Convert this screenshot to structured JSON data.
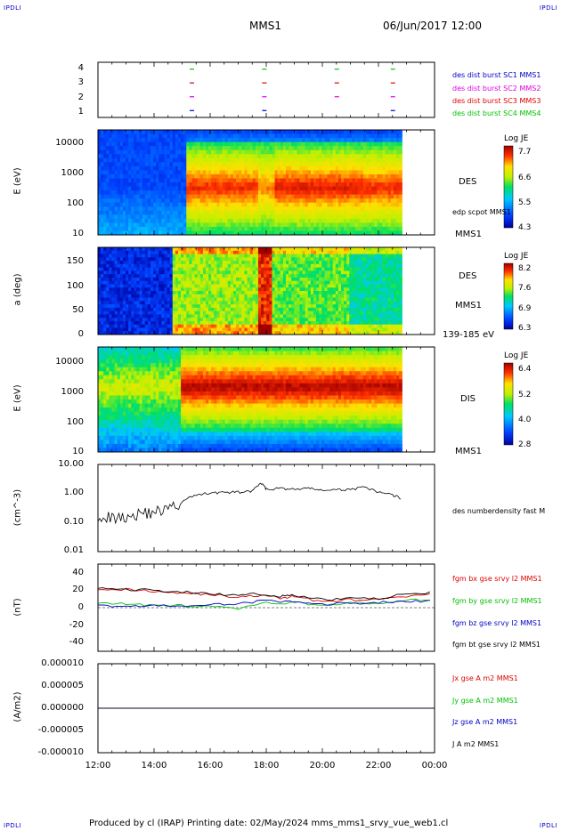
{
  "corners": {
    "tl": "IPDLI",
    "tr": "IPDLI",
    "bl": "IPDLI",
    "br": "IPDLI"
  },
  "header": {
    "title": "MMS1",
    "date": "06/Jun/2017 12:00"
  },
  "footer": {
    "text": "Produced by cl (IRAP)   Printing date: 02/May/2024   mms_mms1_srvy_vue_web1.cl"
  },
  "colors": {
    "blue": "#0000c8",
    "magenta": "#e000e0",
    "red": "#e00000",
    "green": "#00c000",
    "black": "#000000"
  },
  "panels": {
    "sc": {
      "yticks": [
        "4",
        "3",
        "2",
        "1"
      ],
      "legend": [
        "des dist burst SC1 MMS1",
        "des dist burst SC2 MMS2",
        "des dist burst SC3 MMS3",
        "des dist burst SC4 MMS4"
      ]
    },
    "des_e": {
      "ylabel": "E (eV)",
      "yticks": [
        "10000",
        "1000",
        "100",
        "10"
      ],
      "side_label": "DES",
      "side_small": "edp scpot MMS1",
      "bottom_right": "MMS1",
      "cb_title": "Log JE",
      "cb_ticks": [
        "7.7",
        "6.6",
        "5.5",
        "4.3"
      ]
    },
    "des_pa": {
      "ylabel": "a (deg)",
      "yticks": [
        "150",
        "100",
        "50",
        "0"
      ],
      "side_label": "DES",
      "side_label2": "MMS1",
      "bottom_right": "139-185 eV",
      "cb_title": "Log JE",
      "cb_ticks": [
        "8.2",
        "7.6",
        "6.9",
        "6.3"
      ]
    },
    "dis_e": {
      "ylabel": "E (eV)",
      "yticks": [
        "10000",
        "1000",
        "100",
        "10"
      ],
      "side_label": "DIS",
      "bottom_right": "MMS1",
      "cb_title": "Log JE",
      "cb_ticks": [
        "6.4",
        "5.2",
        "4.0",
        "2.8"
      ]
    },
    "density": {
      "ylabel": "(cm^-3)",
      "yticks": [
        "10.00",
        "1.00",
        "0.10",
        "0.01"
      ],
      "legend": "des numberdensity fast M"
    },
    "bfield": {
      "ylabel": "(nT)",
      "yticks": [
        "40",
        "20",
        "0",
        "-20",
        "-40"
      ],
      "legend": [
        "fgm bx gse srvy l2 MMS1",
        "fgm by gse srvy l2 MMS1",
        "fgm bz gse srvy l2 MMS1",
        "fgm bt gse srvy l2 MMS1"
      ]
    },
    "current": {
      "ylabel": "(A/m2)",
      "yticks": [
        "0.000010",
        "0.000005",
        "0.000000",
        "-0.000005",
        "-0.000010"
      ],
      "legend": [
        "Jx gse A m2 MMS1",
        "Jy gse A m2 MMS1",
        "Jz gse A m2 MMS1",
        "J A m2 MMS1"
      ]
    }
  },
  "xaxis": {
    "ticks": [
      "12:00",
      "14:00",
      "16:00",
      "18:00",
      "20:00",
      "22:00",
      "00:00"
    ]
  },
  "chart_data": [
    {
      "type": "scatter",
      "title": "",
      "xlabel": "",
      "ylabel": "",
      "ylim": [
        0.5,
        4.5
      ],
      "x_time_range": [
        "12:00",
        "00:00"
      ],
      "series": [
        {
          "name": "des dist burst SC1 MMS1",
          "y": 1,
          "x": [
            "15:20",
            "17:55",
            "22:30"
          ]
        },
        {
          "name": "des dist burst SC2 MMS2",
          "y": 2,
          "x": [
            "15:20",
            "17:55",
            "20:30",
            "22:30"
          ]
        },
        {
          "name": "des dist burst SC3 MMS3",
          "y": 3,
          "x": [
            "15:20",
            "17:55",
            "20:30",
            "22:30"
          ]
        },
        {
          "name": "des dist burst SC4 MMS4",
          "y": 4,
          "x": [
            "15:20",
            "17:55",
            "20:30",
            "22:30"
          ]
        }
      ]
    },
    {
      "type": "heatmap",
      "ylabel": "E (eV)",
      "yscale": "log",
      "ylim": [
        10,
        30000
      ],
      "x_time_range": [
        "12:00",
        "22:50"
      ],
      "colorbar": {
        "title": "Log JE",
        "range": [
          4.3,
          7.7
        ]
      },
      "regions": [
        {
          "x": [
            "12:00",
            "15:10"
          ],
          "level": 0.2
        },
        {
          "x": [
            "15:10",
            "17:40"
          ],
          "level": 0.85
        },
        {
          "x": [
            "17:40",
            "18:20"
          ],
          "level": 0.7
        },
        {
          "x": [
            "18:20",
            "21:30"
          ],
          "level": 0.9
        },
        {
          "x": [
            "21:30",
            "22:50"
          ],
          "level": 0.85
        }
      ]
    },
    {
      "type": "heatmap",
      "ylabel": "a (deg)",
      "ylim": [
        0,
        180
      ],
      "x_time_range": [
        "12:00",
        "22:50"
      ],
      "colorbar": {
        "title": "Log JE",
        "range": [
          6.3,
          8.2
        ]
      },
      "regions": [
        {
          "x": [
            "12:00",
            "14:40"
          ],
          "level": 0.1
        },
        {
          "x": [
            "14:40",
            "17:40"
          ],
          "level": 0.6
        },
        {
          "x": [
            "17:40",
            "18:10"
          ],
          "level": 0.9
        },
        {
          "x": [
            "18:10",
            "21:00"
          ],
          "level": 0.55
        },
        {
          "x": [
            "21:00",
            "22:50"
          ],
          "level": 0.45
        }
      ]
    },
    {
      "type": "heatmap",
      "ylabel": "E (eV)",
      "yscale": "log",
      "ylim": [
        10,
        30000
      ],
      "x_time_range": [
        "12:00",
        "22:50"
      ],
      "colorbar": {
        "title": "Log JE",
        "range": [
          2.8,
          6.4
        ]
      },
      "regions": [
        {
          "x": [
            "12:00",
            "15:00"
          ],
          "level": 0.5
        },
        {
          "x": [
            "15:00",
            "22:50"
          ],
          "level": 0.88
        }
      ]
    },
    {
      "type": "line",
      "ylabel": "(cm^-3)",
      "yscale": "log",
      "ylim": [
        0.01,
        10
      ],
      "series": [
        {
          "name": "des numberdensity fast M",
          "x": [
            "12:00",
            "12:30",
            "13:00",
            "13:30",
            "14:00",
            "14:30",
            "15:00",
            "15:30",
            "16:00",
            "16:30",
            "17:00",
            "17:30",
            "17:50",
            "18:00",
            "18:30",
            "19:00",
            "19:30",
            "20:00",
            "20:30",
            "21:00",
            "21:30",
            "22:00",
            "22:30",
            "22:50"
          ],
          "values": [
            0.2,
            0.15,
            0.17,
            0.22,
            0.25,
            0.3,
            0.5,
            0.9,
            1.05,
            1.1,
            1.1,
            1.2,
            2.2,
            1.4,
            1.5,
            1.4,
            1.5,
            1.3,
            1.3,
            1.4,
            1.6,
            1.1,
            0.9,
            0.65
          ]
        }
      ]
    },
    {
      "type": "line",
      "ylabel": "(nT)",
      "ylim": [
        -50,
        50
      ],
      "series": [
        {
          "name": "fgm bx gse srvy l2 MMS1",
          "x": [
            "12:00",
            "13:00",
            "14:00",
            "15:00",
            "16:00",
            "17:00",
            "17:50",
            "18:30",
            "19:00",
            "20:00",
            "21:00",
            "22:00",
            "23:00",
            "00:00"
          ],
          "values": [
            22,
            21,
            19,
            17,
            15,
            12,
            14,
            11,
            13,
            7,
            9,
            9,
            13,
            15
          ]
        },
        {
          "name": "fgm by gse srvy l2 MMS1",
          "x": [
            "12:00",
            "13:00",
            "14:00",
            "15:00",
            "16:00",
            "17:00",
            "18:00",
            "19:00",
            "20:00",
            "21:00",
            "22:00",
            "23:00",
            "00:00"
          ],
          "values": [
            6,
            4,
            3,
            2,
            1,
            -1,
            5,
            6,
            3,
            5,
            5,
            8,
            10
          ]
        },
        {
          "name": "fgm bz gse srvy l2 MMS1",
          "x": [
            "12:00",
            "13:00",
            "14:00",
            "15:00",
            "16:00",
            "17:00",
            "18:00",
            "19:00",
            "20:00",
            "21:00",
            "22:00",
            "23:00",
            "00:00"
          ],
          "values": [
            2,
            2,
            2,
            2,
            3,
            5,
            8,
            6,
            4,
            5,
            6,
            7,
            8
          ]
        },
        {
          "name": "fgm bt gse srvy l2 MMS1",
          "x": [
            "12:00",
            "13:00",
            "14:00",
            "15:00",
            "16:00",
            "17:00",
            "17:50",
            "18:30",
            "19:00",
            "20:00",
            "21:00",
            "22:00",
            "23:00",
            "00:00"
          ],
          "values": [
            22,
            21,
            20,
            18,
            16,
            14,
            16,
            13,
            14,
            9,
            11,
            10,
            16,
            18
          ]
        }
      ]
    },
    {
      "type": "line",
      "ylabel": "(A/m2)",
      "ylim": [
        -1e-05,
        1e-05
      ],
      "series": [
        {
          "name": "Jx gse A m2 MMS1",
          "x": [
            "12:00",
            "00:00"
          ],
          "values": [
            0.0,
            0.0
          ]
        },
        {
          "name": "Jy gse A m2 MMS1",
          "x": [
            "12:00",
            "00:00"
          ],
          "values": [
            0.0,
            0.0
          ]
        },
        {
          "name": "Jz gse A m2 MMS1",
          "x": [
            "12:00",
            "00:00"
          ],
          "values": [
            0.0,
            0.0
          ]
        },
        {
          "name": "J A m2 MMS1",
          "x": [
            "12:00",
            "00:00"
          ],
          "values": [
            0.0,
            0.0
          ]
        }
      ]
    }
  ]
}
